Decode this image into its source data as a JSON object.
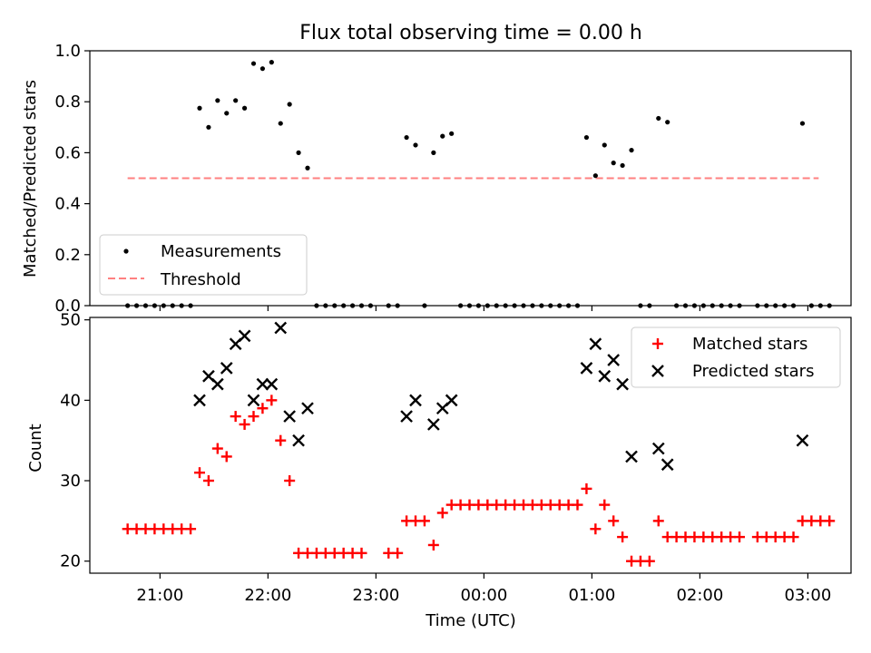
{
  "chart_data": [
    {
      "type": "scatter",
      "title": "Flux total observing time = 0.00 h",
      "xlabel": "",
      "ylabel": "Matched/Predicted stars",
      "ylim": [
        0,
        1
      ],
      "yticks": [
        "0.0",
        "0.2",
        "0.4",
        "0.6",
        "0.8",
        "1.0"
      ],
      "xlim": [
        "20:21",
        "03:24"
      ],
      "legend_placement": "lower-left",
      "legend": [
        "Measurements",
        "Threshold"
      ],
      "threshold": {
        "value": 0.5,
        "from": "20:42",
        "to": "03:06",
        "color": "#ff8080",
        "style": "dashed"
      },
      "marker_color": "#000000",
      "series": [
        {
          "name": "Measurements",
          "points": [
            [
              "20:42",
              0
            ],
            [
              "20:47",
              0
            ],
            [
              "20:52",
              0
            ],
            [
              "20:57",
              0
            ],
            [
              "21:02",
              0
            ],
            [
              "21:07",
              0
            ],
            [
              "21:12",
              0
            ],
            [
              "21:17",
              0
            ],
            [
              "21:22",
              0.775
            ],
            [
              "21:27",
              0.7
            ],
            [
              "21:32",
              0.805
            ],
            [
              "21:37",
              0.755
            ],
            [
              "21:42",
              0.805
            ],
            [
              "21:47",
              0.775
            ],
            [
              "21:52",
              0.95
            ],
            [
              "21:57",
              0.93
            ],
            [
              "22:02",
              0.955
            ],
            [
              "22:07",
              0.715
            ],
            [
              "22:12",
              0.79
            ],
            [
              "22:17",
              0.6
            ],
            [
              "22:22",
              0.54
            ],
            [
              "22:27",
              0
            ],
            [
              "22:32",
              0
            ],
            [
              "22:37",
              0
            ],
            [
              "22:42",
              0
            ],
            [
              "22:47",
              0
            ],
            [
              "22:52",
              0
            ],
            [
              "22:57",
              0
            ],
            [
              "23:07",
              0
            ],
            [
              "23:12",
              0
            ],
            [
              "23:17",
              0.66
            ],
            [
              "23:22",
              0.63
            ],
            [
              "23:27",
              0
            ],
            [
              "23:32",
              0.6
            ],
            [
              "23:37",
              0.665
            ],
            [
              "23:42",
              0.675
            ],
            [
              "23:47",
              0
            ],
            [
              "23:52",
              0
            ],
            [
              "23:57",
              0
            ],
            [
              "00:02",
              0
            ],
            [
              "00:07",
              0
            ],
            [
              "00:12",
              0
            ],
            [
              "00:17",
              0
            ],
            [
              "00:22",
              0
            ],
            [
              "00:27",
              0
            ],
            [
              "00:32",
              0
            ],
            [
              "00:37",
              0
            ],
            [
              "00:42",
              0
            ],
            [
              "00:47",
              0
            ],
            [
              "00:52",
              0
            ],
            [
              "00:57",
              0.66
            ],
            [
              "01:02",
              0.51
            ],
            [
              "01:07",
              0.63
            ],
            [
              "01:12",
              0.56
            ],
            [
              "01:17",
              0.55
            ],
            [
              "01:22",
              0.61
            ],
            [
              "01:27",
              0
            ],
            [
              "01:32",
              0
            ],
            [
              "01:37",
              0.735
            ],
            [
              "01:42",
              0.72
            ],
            [
              "01:47",
              0
            ],
            [
              "01:52",
              0
            ],
            [
              "01:57",
              0
            ],
            [
              "02:02",
              0
            ],
            [
              "02:07",
              0
            ],
            [
              "02:12",
              0
            ],
            [
              "02:17",
              0
            ],
            [
              "02:22",
              0
            ],
            [
              "02:32",
              0
            ],
            [
              "02:37",
              0
            ],
            [
              "02:42",
              0
            ],
            [
              "02:47",
              0
            ],
            [
              "02:52",
              0
            ],
            [
              "02:57",
              0.715
            ],
            [
              "03:02",
              0
            ],
            [
              "03:07",
              0
            ],
            [
              "03:12",
              0
            ]
          ]
        }
      ]
    },
    {
      "type": "scatter",
      "title": "",
      "xlabel": "Time (UTC)",
      "ylabel": "Count",
      "ylim": [
        18.5,
        50.3
      ],
      "yticks": [
        "20",
        "30",
        "40",
        "50"
      ],
      "xticks": [
        "21:00",
        "22:00",
        "23:00",
        "00:00",
        "01:00",
        "02:00",
        "03:00"
      ],
      "xlim": [
        "20:21",
        "03:24"
      ],
      "legend_placement": "upper-right",
      "legend": [
        "Matched stars",
        "Predicted stars"
      ],
      "series": [
        {
          "name": "Matched stars",
          "marker": "+",
          "color": "#ff0000",
          "points": [
            [
              "20:42",
              24
            ],
            [
              "20:47",
              24
            ],
            [
              "20:52",
              24
            ],
            [
              "20:57",
              24
            ],
            [
              "21:02",
              24
            ],
            [
              "21:07",
              24
            ],
            [
              "21:12",
              24
            ],
            [
              "21:17",
              24
            ],
            [
              "21:22",
              31
            ],
            [
              "21:27",
              30
            ],
            [
              "21:32",
              34
            ],
            [
              "21:37",
              33
            ],
            [
              "21:42",
              38
            ],
            [
              "21:47",
              37
            ],
            [
              "21:52",
              38
            ],
            [
              "21:57",
              39
            ],
            [
              "22:02",
              40
            ],
            [
              "22:07",
              35
            ],
            [
              "22:12",
              30
            ],
            [
              "22:17",
              21
            ],
            [
              "22:22",
              21
            ],
            [
              "22:27",
              21
            ],
            [
              "22:32",
              21
            ],
            [
              "22:37",
              21
            ],
            [
              "22:42",
              21
            ],
            [
              "22:47",
              21
            ],
            [
              "22:52",
              21
            ],
            [
              "23:07",
              21
            ],
            [
              "23:12",
              21
            ],
            [
              "23:17",
              25
            ],
            [
              "23:22",
              25
            ],
            [
              "23:27",
              25
            ],
            [
              "23:32",
              22
            ],
            [
              "23:37",
              26
            ],
            [
              "23:42",
              27
            ],
            [
              "23:47",
              27
            ],
            [
              "23:52",
              27
            ],
            [
              "23:57",
              27
            ],
            [
              "00:02",
              27
            ],
            [
              "00:07",
              27
            ],
            [
              "00:12",
              27
            ],
            [
              "00:17",
              27
            ],
            [
              "00:22",
              27
            ],
            [
              "00:27",
              27
            ],
            [
              "00:32",
              27
            ],
            [
              "00:37",
              27
            ],
            [
              "00:42",
              27
            ],
            [
              "00:47",
              27
            ],
            [
              "00:52",
              27
            ],
            [
              "00:57",
              29
            ],
            [
              "01:02",
              24
            ],
            [
              "01:07",
              27
            ],
            [
              "01:12",
              25
            ],
            [
              "01:17",
              23
            ],
            [
              "01:22",
              20
            ],
            [
              "01:27",
              20
            ],
            [
              "01:32",
              20
            ],
            [
              "01:37",
              25
            ],
            [
              "01:42",
              23
            ],
            [
              "01:47",
              23
            ],
            [
              "01:52",
              23
            ],
            [
              "01:57",
              23
            ],
            [
              "02:02",
              23
            ],
            [
              "02:07",
              23
            ],
            [
              "02:12",
              23
            ],
            [
              "02:17",
              23
            ],
            [
              "02:22",
              23
            ],
            [
              "02:32",
              23
            ],
            [
              "02:37",
              23
            ],
            [
              "02:42",
              23
            ],
            [
              "02:47",
              23
            ],
            [
              "02:52",
              23
            ],
            [
              "02:57",
              25
            ],
            [
              "03:02",
              25
            ],
            [
              "03:07",
              25
            ],
            [
              "03:12",
              25
            ]
          ]
        },
        {
          "name": "Predicted stars",
          "marker": "x",
          "color": "#000000",
          "points": [
            [
              "21:22",
              40
            ],
            [
              "21:27",
              43
            ],
            [
              "21:32",
              42
            ],
            [
              "21:37",
              44
            ],
            [
              "21:42",
              47
            ],
            [
              "21:47",
              48
            ],
            [
              "21:52",
              40
            ],
            [
              "21:57",
              42
            ],
            [
              "22:02",
              42
            ],
            [
              "22:07",
              49
            ],
            [
              "22:12",
              38
            ],
            [
              "22:17",
              35
            ],
            [
              "22:22",
              39
            ],
            [
              "23:17",
              38
            ],
            [
              "23:22",
              40
            ],
            [
              "23:32",
              37
            ],
            [
              "23:37",
              39
            ],
            [
              "23:42",
              40
            ],
            [
              "00:57",
              44
            ],
            [
              "01:02",
              47
            ],
            [
              "01:07",
              43
            ],
            [
              "01:12",
              45
            ],
            [
              "01:17",
              42
            ],
            [
              "01:22",
              33
            ],
            [
              "01:37",
              34
            ],
            [
              "01:42",
              32
            ],
            [
              "02:57",
              35
            ]
          ]
        }
      ]
    }
  ]
}
